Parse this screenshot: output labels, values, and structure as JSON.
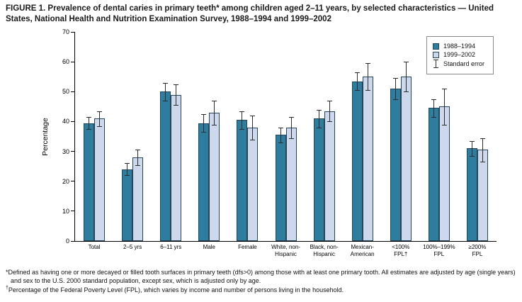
{
  "figure": {
    "title": "FIGURE 1. Prevalence of dental caries in primary teeth* among children aged 2–11 years, by selected characteristics — United States, National Health and Nutrition Examination Survey, 1988–1994 and 1999–2002"
  },
  "chart_data": {
    "type": "bar",
    "title": "Prevalence of dental caries in primary teeth among children aged 2–11 years, by selected characteristics",
    "xlabel": "",
    "ylabel": "Percentage",
    "ylim": [
      0,
      70
    ],
    "yticks": [
      0,
      10,
      20,
      30,
      40,
      50,
      60,
      70
    ],
    "grid": false,
    "legend_position": "top-right",
    "categories": [
      "Total",
      "2–5 yrs",
      "6–11 yrs",
      "Male",
      "Female",
      "White, non-\nHispanic",
      "Black, non-\nHispanic",
      "Mexican-\nAmerican",
      "<100%\nFPL†",
      "100%–199%\nFPL",
      "≥200%\nFPL"
    ],
    "series": [
      {
        "name": "1988–1994",
        "color": "#2E7D9E",
        "values": [
          39.5,
          24,
          50,
          39.5,
          40.5,
          35.5,
          41,
          53.5,
          51,
          44.5,
          31
        ],
        "stderr": [
          2,
          2,
          3,
          3,
          3,
          2.5,
          3,
          3,
          3.5,
          3,
          2.5
        ]
      },
      {
        "name": "1999–2002",
        "color": "#CDD8EC",
        "values": [
          41,
          28,
          49,
          43,
          38,
          38,
          43.5,
          55,
          55,
          45,
          30.5
        ],
        "stderr": [
          2.5,
          2.5,
          3.5,
          4,
          4,
          3.5,
          3.5,
          4.5,
          5,
          6,
          4
        ]
      }
    ],
    "error_bar_label": "Standard error",
    "bar_border_color": "#24465A",
    "error_bar_color": "#2b2b2b"
  },
  "footnotes": [
    {
      "marker": "*",
      "text": "Defined as having one or more decayed or filled tooth surfaces in primary teeth (dfs>0) among those with at least one primary tooth. All estimates are adjusted by age (single years) and sex to the U.S. 2000 standard population, except sex, which is adjusted only by age."
    },
    {
      "marker": "†",
      "text": "Percentage of the Federal Poverty Level (FPL), which varies by income and number of persons living in the household."
    }
  ]
}
